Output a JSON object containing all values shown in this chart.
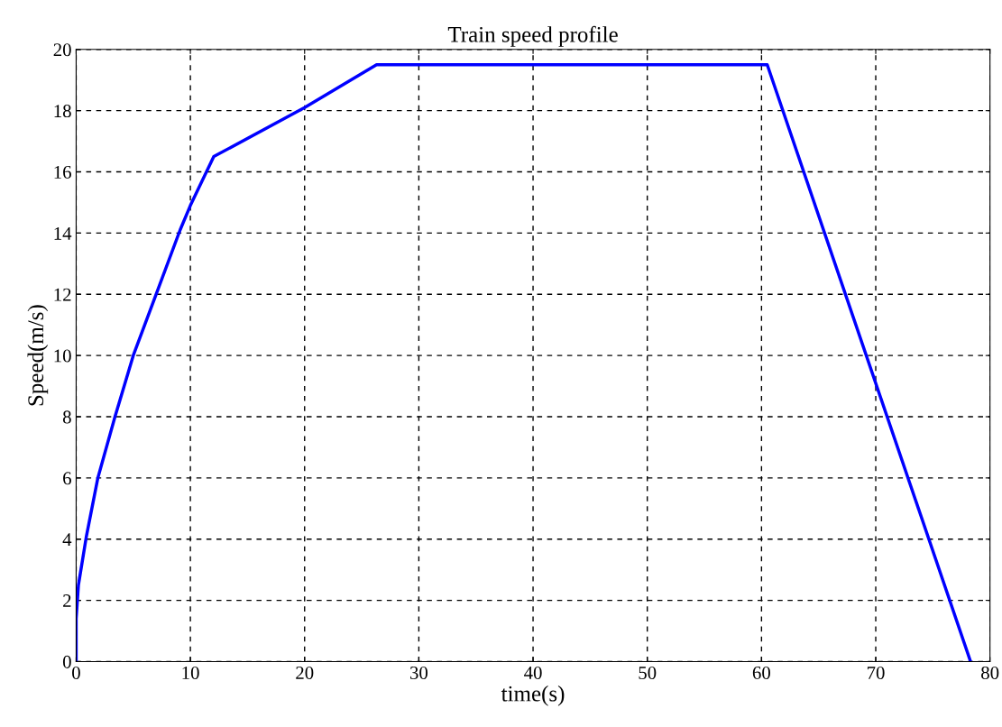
{
  "chart_data": {
    "type": "line",
    "title": "Train speed profile",
    "xlabel": "time(s)",
    "ylabel": "Speed(m/s)",
    "series": [
      {
        "color": "#0000ff",
        "x": [
          0,
          0,
          0.2,
          0.9,
          1.9,
          3.4,
          5.0,
          7.0,
          9.1,
          10.0,
          12.05,
          20.0,
          26.3,
          60.5,
          78.3
        ],
        "values": [
          0,
          1.4,
          2.5,
          4.1,
          6.0,
          8.0,
          10.0,
          12.0,
          14.1,
          14.9,
          16.5,
          18.1,
          19.5,
          19.5,
          0
        ]
      }
    ],
    "xlim": [
      0,
      80
    ],
    "ylim": [
      0,
      20
    ],
    "xticks": [
      0,
      10,
      20,
      30,
      40,
      50,
      60,
      70,
      80
    ],
    "yticks": [
      0,
      2,
      4,
      6,
      8,
      10,
      12,
      14,
      16,
      18,
      20
    ],
    "grid": true,
    "line_style": "solid",
    "marker": "none"
  }
}
